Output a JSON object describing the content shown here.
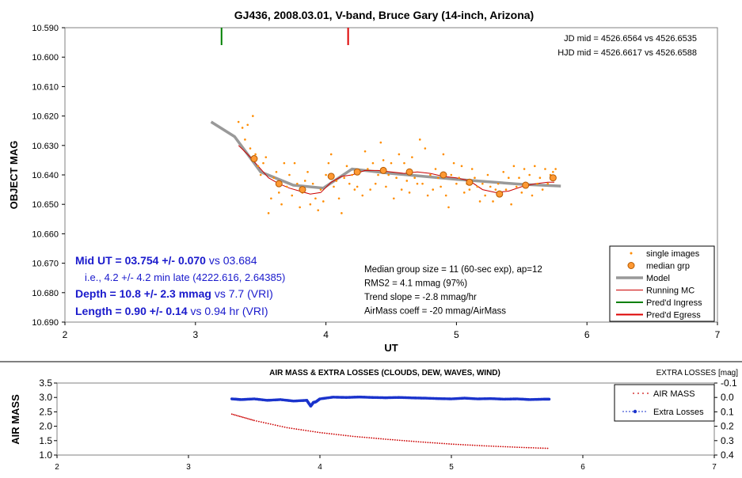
{
  "colors": {
    "single_images": "#ff8c00",
    "median_grp_fill": "#ff9933",
    "median_grp_edge": "#b35900",
    "model": "#999999",
    "running_mc": "#cc0000",
    "ingress": "#008000",
    "egress": "#dd0000",
    "extra_losses": "#1a33cc",
    "airmass": "#cc0000",
    "blue_text": "#1a1acc"
  },
  "chart_data": [
    {
      "type": "scatter",
      "title": "GJ436, 2008.03.01, V-band, Bruce Gary (14-inch, Arizona)",
      "xlabel": "UT",
      "ylabel": "OBJECT MAG",
      "xlim": [
        2,
        7
      ],
      "ylim": [
        10.59,
        10.69
      ],
      "y_inverted": true,
      "x_ticks": [
        "2",
        "3",
        "4",
        "5",
        "6",
        "7"
      ],
      "y_ticks": [
        "10.590",
        "10.600",
        "10.610",
        "10.620",
        "10.630",
        "10.640",
        "10.650",
        "10.660",
        "10.670",
        "10.680",
        "10.690"
      ],
      "legend_position": "bottom-right",
      "legend": [
        "single images",
        "median grp",
        "Model",
        "Running MC",
        "Pred'd Ingress",
        "Pred'd Egress"
      ],
      "jd_text": [
        "JD mid = 4526.6564 vs 4526.6535",
        "HJD mid = 4526.6617 vs 4526.6588"
      ],
      "result_lines": [
        {
          "bold": "Mid UT = 03.754 +/- 0.070",
          "rest": " vs 03.684"
        },
        {
          "bold": "",
          "rest": "i.e., 4.2 +/- 4.2 min late (4222.616, 2.64385)"
        },
        {
          "bold": "Depth = 10.8 +/- 2.3 mmag",
          "rest": " vs 7.7 (VRI)"
        },
        {
          "bold": "Length = 0.90 +/- 0.14",
          "rest": " vs 0.94 hr (VRI)"
        }
      ],
      "stats_lines": [
        "Median group size = 11 (60-sec exp), ap=12",
        "RMS2 = 4.1 mmag (97%)",
        "Trend slope = -2.8 mmag/hr",
        "AirMass coeff = -20 mmag/AirMass"
      ],
      "predicted_ingress_ut": 3.2,
      "predicted_egress_ut": 4.17,
      "median_grp": {
        "x": [
          3.45,
          3.64,
          3.82,
          4.04,
          4.24,
          4.44,
          4.64,
          4.9,
          5.1,
          5.33,
          5.53,
          5.74
        ],
        "y": [
          10.6345,
          10.643,
          10.645,
          10.6405,
          10.639,
          10.6385,
          10.639,
          10.64,
          10.6425,
          10.6465,
          10.6435,
          10.641
        ]
      },
      "model": {
        "x": [
          3.12,
          3.3,
          3.5,
          3.75,
          3.98,
          4.2,
          4.5,
          5.0,
          5.5,
          5.8
        ],
        "y": [
          10.622,
          10.627,
          10.639,
          10.6435,
          10.6445,
          10.638,
          10.6395,
          10.6415,
          10.6432,
          10.6438
        ]
      },
      "running_mc": {
        "x": [
          3.33,
          3.4,
          3.48,
          3.56,
          3.64,
          3.72,
          3.8,
          3.88,
          3.96,
          4.04,
          4.12,
          4.2,
          4.3,
          4.4,
          4.5,
          4.6,
          4.7,
          4.8,
          4.9,
          5.0,
          5.1,
          5.2,
          5.3,
          5.4,
          5.5,
          5.6,
          5.7,
          5.75
        ],
        "y": [
          10.63,
          10.633,
          10.637,
          10.641,
          10.643,
          10.6445,
          10.6455,
          10.6465,
          10.646,
          10.6425,
          10.6405,
          10.64,
          10.6385,
          10.6385,
          10.639,
          10.6395,
          10.639,
          10.6395,
          10.6405,
          10.641,
          10.642,
          10.645,
          10.646,
          10.6455,
          10.644,
          10.643,
          10.6425,
          10.6425
        ]
      },
      "single_images": {
        "x": [
          3.33,
          3.36,
          3.38,
          3.4,
          3.42,
          3.44,
          3.46,
          3.48,
          3.5,
          3.52,
          3.54,
          3.56,
          3.58,
          3.6,
          3.62,
          3.64,
          3.66,
          3.68,
          3.7,
          3.72,
          3.74,
          3.76,
          3.78,
          3.8,
          3.82,
          3.84,
          3.86,
          3.88,
          3.9,
          3.92,
          3.94,
          3.96,
          3.98,
          4.0,
          4.02,
          4.04,
          4.06,
          4.08,
          4.1,
          4.12,
          4.14,
          4.16,
          4.18,
          4.2,
          4.22,
          4.24,
          4.26,
          4.28,
          4.3,
          4.32,
          4.34,
          4.36,
          4.38,
          4.4,
          4.42,
          4.44,
          4.46,
          4.48,
          4.5,
          4.52,
          4.54,
          4.56,
          4.58,
          4.6,
          4.62,
          4.64,
          4.66,
          4.68,
          4.7,
          4.72,
          4.74,
          4.76,
          4.78,
          4.8,
          4.82,
          4.84,
          4.86,
          4.88,
          4.9,
          4.92,
          4.94,
          4.96,
          4.98,
          5.0,
          5.02,
          5.04,
          5.06,
          5.08,
          5.1,
          5.12,
          5.14,
          5.16,
          5.18,
          5.2,
          5.22,
          5.24,
          5.26,
          5.28,
          5.3,
          5.32,
          5.34,
          5.36,
          5.38,
          5.4,
          5.42,
          5.44,
          5.46,
          5.48,
          5.5,
          5.52,
          5.54,
          5.56,
          5.58,
          5.6,
          5.62,
          5.64,
          5.66,
          5.68,
          5.7,
          5.72,
          5.74,
          5.76
        ],
        "y": [
          10.622,
          10.624,
          10.628,
          10.623,
          10.631,
          10.62,
          10.633,
          10.637,
          10.64,
          10.636,
          10.634,
          10.653,
          10.648,
          10.641,
          10.639,
          10.646,
          10.65,
          10.636,
          10.644,
          10.64,
          10.647,
          10.636,
          10.643,
          10.651,
          10.646,
          10.642,
          10.639,
          10.65,
          10.643,
          10.648,
          10.652,
          10.645,
          10.649,
          10.64,
          10.636,
          10.633,
          10.644,
          10.642,
          10.648,
          10.653,
          10.641,
          10.637,
          10.643,
          10.64,
          10.645,
          10.644,
          10.639,
          10.647,
          10.632,
          10.638,
          10.645,
          10.636,
          10.643,
          10.64,
          10.629,
          10.635,
          10.644,
          10.64,
          10.636,
          10.648,
          10.641,
          10.633,
          10.645,
          10.636,
          10.642,
          10.646,
          10.634,
          10.641,
          10.643,
          10.628,
          10.643,
          10.631,
          10.647,
          10.64,
          10.645,
          10.638,
          10.641,
          10.644,
          10.633,
          10.647,
          10.651,
          10.64,
          10.636,
          10.643,
          10.641,
          10.637,
          10.646,
          10.643,
          10.645,
          10.638,
          10.641,
          10.644,
          10.649,
          10.643,
          10.647,
          10.64,
          10.644,
          10.649,
          10.645,
          10.643,
          10.647,
          10.639,
          10.645,
          10.641,
          10.65,
          10.637,
          10.644,
          10.641,
          10.646,
          10.638,
          10.643,
          10.64,
          10.647,
          10.637,
          10.643,
          10.641,
          10.645,
          10.638,
          10.643,
          10.64,
          10.639,
          10.638
        ]
      }
    },
    {
      "type": "scatter",
      "title": "AIR MASS & EXTRA LOSSES (CLOUDS, DEW, WAVES, WIND)",
      "ylabel": "AIR MASS",
      "y2label": "EXTRA LOSSES [mag]",
      "xlim": [
        2,
        7
      ],
      "ylim": [
        1.0,
        3.5
      ],
      "y2lim": [
        -0.1,
        0.4
      ],
      "x_ticks": [
        "2",
        "3",
        "4",
        "5",
        "6",
        "7"
      ],
      "y_ticks": [
        "1.0",
        "1.5",
        "2.0",
        "2.5",
        "3.0",
        "3.5"
      ],
      "y2_ticks": [
        "-0.1",
        "0.0",
        "0.1",
        "0.2",
        "0.3",
        "0.4"
      ],
      "legend_position": "top-right",
      "legend": [
        "AIR MASS",
        "Extra Losses"
      ],
      "airmass": {
        "x": [
          3.33,
          3.5,
          3.75,
          4.0,
          4.25,
          4.5,
          4.75,
          5.0,
          5.25,
          5.5,
          5.75
        ],
        "y": [
          2.42,
          2.2,
          1.95,
          1.78,
          1.65,
          1.55,
          1.46,
          1.38,
          1.32,
          1.27,
          1.23
        ]
      },
      "extra_losses": {
        "x": [
          3.33,
          3.4,
          3.5,
          3.6,
          3.7,
          3.8,
          3.9,
          3.93,
          3.95,
          3.97,
          4.0,
          4.1,
          4.2,
          4.3,
          4.4,
          4.5,
          4.6,
          4.7,
          4.8,
          4.9,
          5.0,
          5.1,
          5.2,
          5.3,
          5.4,
          5.5,
          5.6,
          5.7,
          5.75
        ],
        "y": [
          0.01,
          0.015,
          0.01,
          0.02,
          0.015,
          0.025,
          0.02,
          0.06,
          0.035,
          0.03,
          0.01,
          -0.002,
          0.0,
          -0.003,
          0.0,
          0.002,
          0.0,
          0.003,
          0.005,
          0.008,
          0.01,
          0.005,
          0.01,
          0.008,
          0.012,
          0.01,
          0.015,
          0.012,
          0.012
        ]
      }
    }
  ]
}
